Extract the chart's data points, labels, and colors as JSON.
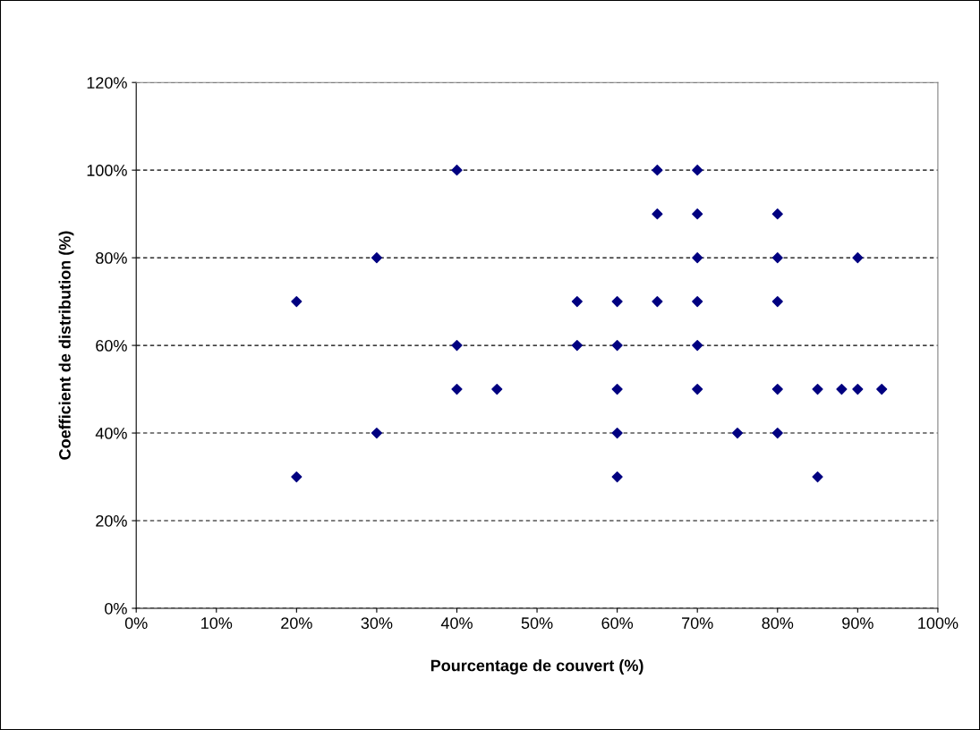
{
  "chart_data": {
    "type": "scatter",
    "xlabel": "Pourcentage de couvert (%)",
    "ylabel": "Coefficient de distribution (%)",
    "x": [
      20,
      20,
      30,
      30,
      40,
      40,
      40,
      45,
      55,
      55,
      60,
      60,
      60,
      60,
      60,
      65,
      65,
      65,
      70,
      70,
      70,
      70,
      70,
      70,
      75,
      80,
      80,
      80,
      80,
      80,
      85,
      85,
      88,
      90,
      90,
      93
    ],
    "series": [
      {
        "color": "#000080",
        "values": [
          70,
          30,
          80,
          40,
          100,
          60,
          50,
          50,
          70,
          60,
          70,
          60,
          50,
          40,
          30,
          100,
          90,
          70,
          100,
          90,
          80,
          70,
          60,
          50,
          40,
          90,
          80,
          70,
          50,
          40,
          50,
          30,
          50,
          80,
          50,
          50
        ]
      }
    ],
    "xlim": [
      0,
      100
    ],
    "ylim": [
      0,
      120
    ],
    "xticks": [
      {
        "value": 0,
        "label": "0%"
      },
      {
        "value": 10,
        "label": "10%"
      },
      {
        "value": 20,
        "label": "20%"
      },
      {
        "value": 30,
        "label": "30%"
      },
      {
        "value": 40,
        "label": "40%"
      },
      {
        "value": 50,
        "label": "50%"
      },
      {
        "value": 60,
        "label": "60%"
      },
      {
        "value": 70,
        "label": "70%"
      },
      {
        "value": 80,
        "label": "80%"
      },
      {
        "value": 90,
        "label": "90%"
      },
      {
        "value": 100,
        "label": "100%"
      }
    ],
    "yticks": [
      {
        "value": 0,
        "label": "0%"
      },
      {
        "value": 20,
        "label": "20%"
      },
      {
        "value": 40,
        "label": "40%"
      },
      {
        "value": 60,
        "label": "60%"
      },
      {
        "value": 80,
        "label": "80%"
      },
      {
        "value": 100,
        "label": "100%"
      },
      {
        "value": 120,
        "label": "120%"
      }
    ],
    "grid": "y",
    "marker": "diamond"
  }
}
